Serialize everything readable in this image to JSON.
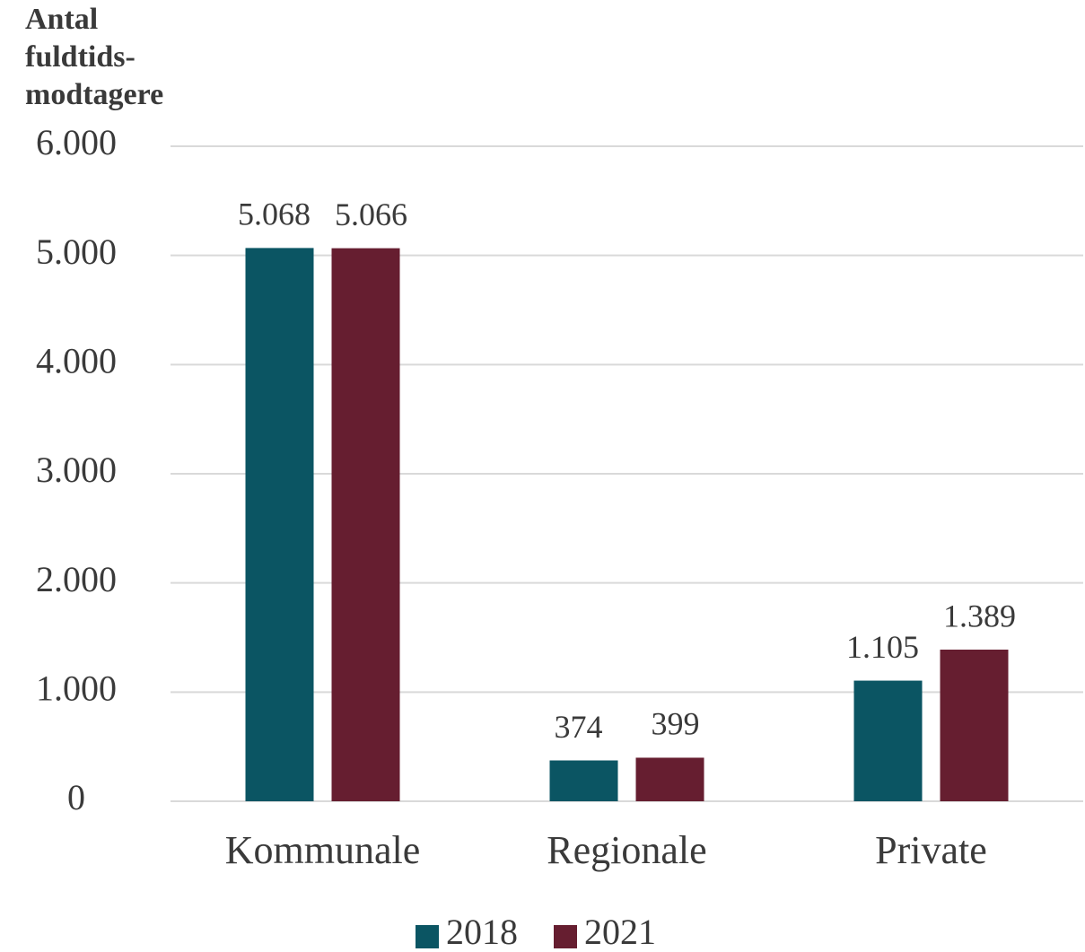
{
  "chart_data": {
    "type": "bar",
    "y_label": [
      "Antal",
      "fuldtids-",
      "modtagere"
    ],
    "categories": [
      "Kommunale",
      "Regionale",
      "Private"
    ],
    "series": [
      {
        "name": "2018",
        "color": "#0b5563",
        "values": [
          5068,
          374,
          1105
        ],
        "value_labels": [
          "5.068",
          "374",
          "1.105"
        ]
      },
      {
        "name": "2021",
        "color": "#661e30",
        "values": [
          5066,
          399,
          1389
        ],
        "value_labels": [
          "5.066",
          "399",
          "1.389"
        ]
      }
    ],
    "ylim": [
      0,
      6000
    ],
    "yticks": [
      0,
      {
        "value": 1000,
        "label": "1.000"
      },
      {
        "value": 2000,
        "label": "2.000"
      },
      {
        "value": 3000,
        "label": "3.000"
      },
      {
        "value": 4000,
        "label": "4.000"
      },
      {
        "value": 5000,
        "label": "5.000"
      },
      {
        "value": 6000,
        "label": "6.000"
      }
    ],
    "grid": true,
    "legend": "bottom"
  }
}
